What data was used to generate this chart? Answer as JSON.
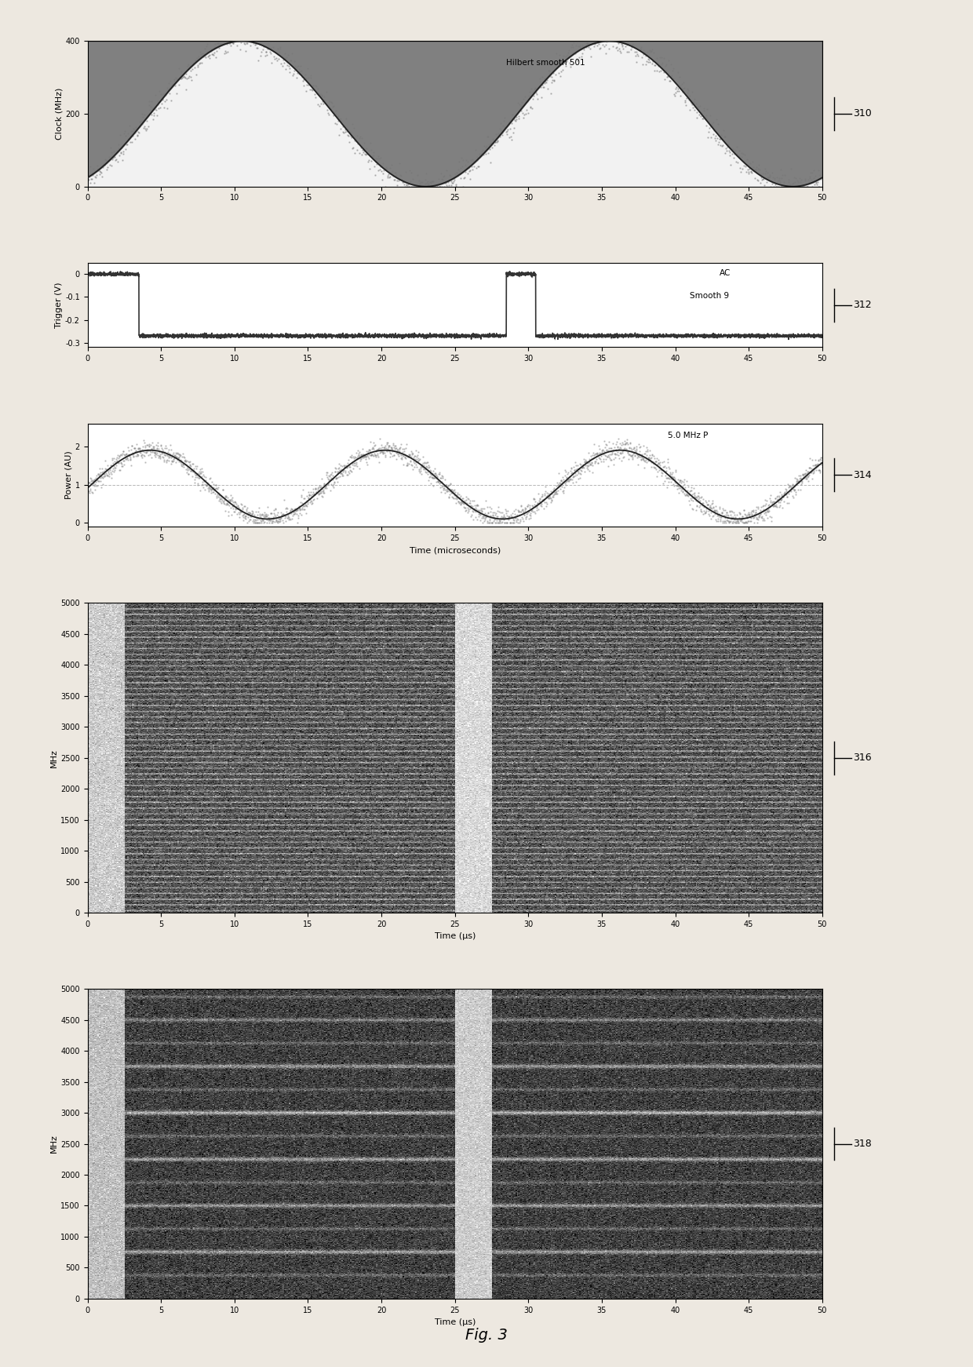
{
  "fig_width": 12.4,
  "fig_height": 17.42,
  "dpi": 100,
  "bg_color": "#ede8e0",
  "panel_bg": "#ffffff",
  "clock_ylim": [
    0,
    400
  ],
  "clock_yticks": [
    0,
    200,
    400
  ],
  "clock_ylabel": "Clock (MHz)",
  "clock_annotation": "Hilbert smooth 501",
  "trigger_ylim": [
    -0.32,
    0.05
  ],
  "trigger_yticks": [
    0,
    -0.1,
    -0.2,
    -0.3
  ],
  "trigger_ytick_labels": [
    "0",
    "-0.1",
    "-0.2",
    "-0.3"
  ],
  "trigger_ylabel": "Trigger (V)",
  "trigger_annotation1": "AC",
  "trigger_annotation2": "Smooth 9",
  "power_ylim": [
    -0.1,
    2.6
  ],
  "power_yticks": [
    0,
    1,
    2
  ],
  "power_ylabel": "Power (AU)",
  "power_annotation": "5.0 MHz P",
  "time_xlabel_top": "Time (microseconds)",
  "spec_xlabel": "Time (μs)",
  "spec_ylabel": "MHz",
  "spec_yticks": [
    0,
    500,
    1000,
    1500,
    2000,
    2500,
    3000,
    3500,
    4000,
    4500,
    5000
  ],
  "spec_xticks": [
    0,
    5,
    10,
    15,
    20,
    25,
    30,
    35,
    40,
    45,
    50
  ],
  "label_310": "310",
  "label_312": "312",
  "label_314": "314",
  "label_316": "316",
  "label_318": "318",
  "fig_label": "Fig. 3"
}
